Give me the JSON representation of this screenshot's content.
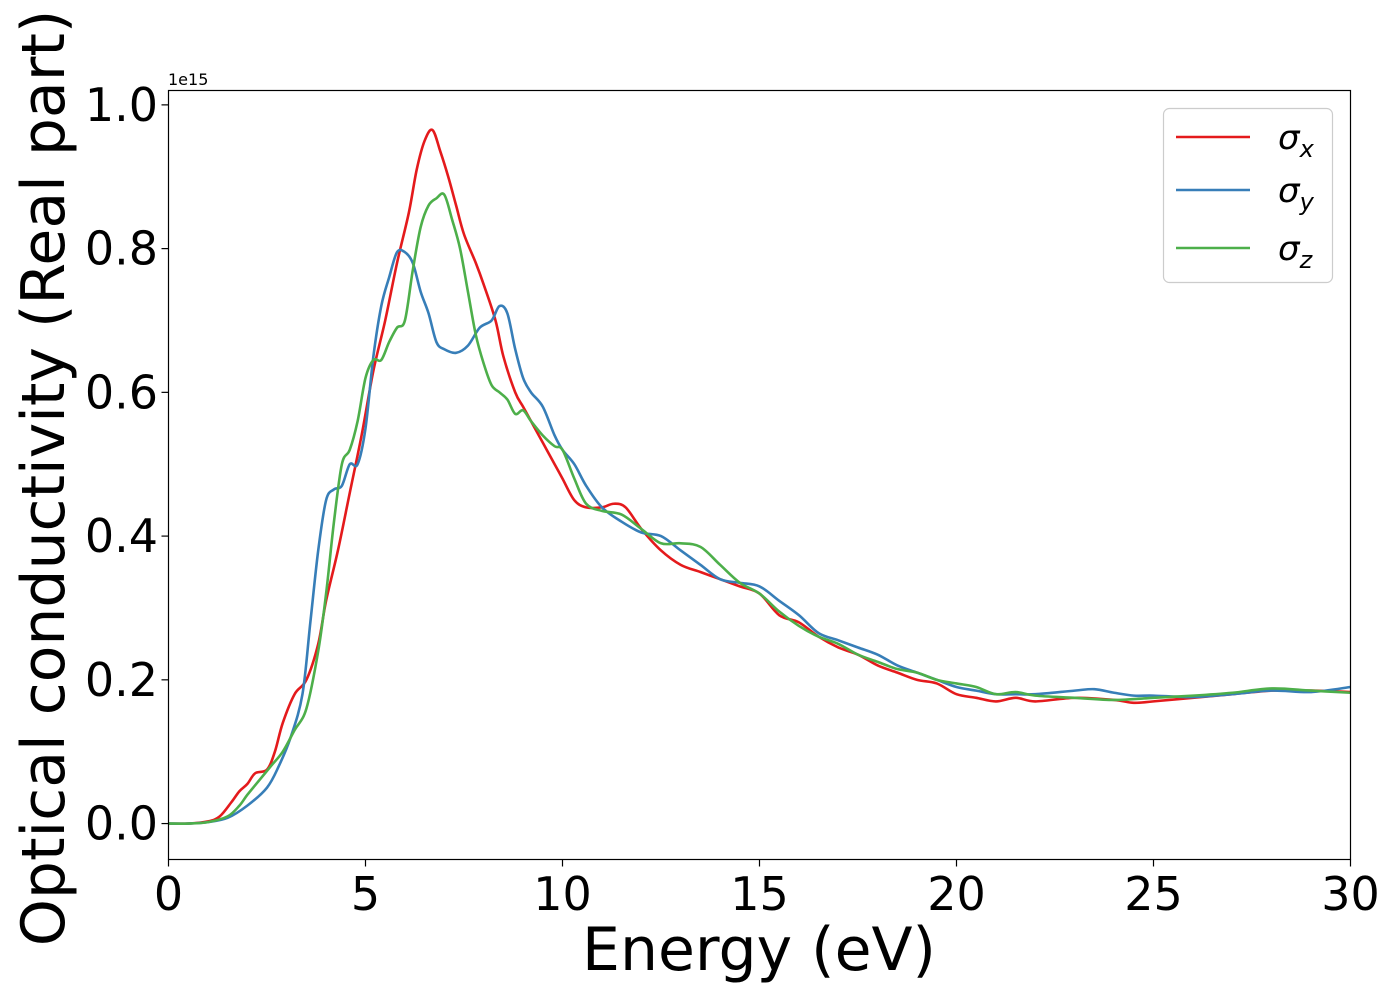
{
  "chart_data": {
    "type": "line",
    "title": "",
    "xlabel": "Energy (eV)",
    "ylabel": "Optical conductivity (Real part)",
    "y_offset_label": "1e15",
    "xlim": [
      0,
      30
    ],
    "ylim": [
      -0.05,
      1.02
    ],
    "grid": false,
    "legend_position": "top-right",
    "x_ticks": [
      0,
      5,
      10,
      15,
      20,
      25,
      30
    ],
    "x_tick_labels": [
      "0",
      "5",
      "10",
      "15",
      "20",
      "25",
      "30"
    ],
    "y_ticks": [
      0.0,
      0.2,
      0.4,
      0.6,
      0.8,
      1.0
    ],
    "y_tick_labels": [
      "0.0",
      "0.2",
      "0.4",
      "0.6",
      "0.8",
      "1.0"
    ],
    "series": [
      {
        "name": "σx",
        "symbol": "σ",
        "subscript": "x",
        "color": "#e41a1c",
        "points": [
          [
            0,
            0
          ],
          [
            0.5,
            0
          ],
          [
            1,
            0.003
          ],
          [
            1.3,
            0.01
          ],
          [
            1.6,
            0.03
          ],
          [
            1.8,
            0.045
          ],
          [
            2,
            0.055
          ],
          [
            2.2,
            0.07
          ],
          [
            2.5,
            0.075
          ],
          [
            2.7,
            0.1
          ],
          [
            2.9,
            0.14
          ],
          [
            3.2,
            0.18
          ],
          [
            3.5,
            0.2
          ],
          [
            3.8,
            0.25
          ],
          [
            4,
            0.31
          ],
          [
            4.3,
            0.38
          ],
          [
            4.6,
            0.46
          ],
          [
            4.9,
            0.54
          ],
          [
            5.2,
            0.63
          ],
          [
            5.5,
            0.7
          ],
          [
            5.8,
            0.78
          ],
          [
            6.1,
            0.85
          ],
          [
            6.3,
            0.91
          ],
          [
            6.5,
            0.95
          ],
          [
            6.7,
            0.965
          ],
          [
            6.9,
            0.935
          ],
          [
            7.1,
            0.9
          ],
          [
            7.3,
            0.86
          ],
          [
            7.5,
            0.82
          ],
          [
            7.8,
            0.78
          ],
          [
            8,
            0.75
          ],
          [
            8.3,
            0.7
          ],
          [
            8.5,
            0.65
          ],
          [
            8.8,
            0.6
          ],
          [
            9,
            0.58
          ],
          [
            9.2,
            0.56
          ],
          [
            9.5,
            0.53
          ],
          [
            9.8,
            0.5
          ],
          [
            10,
            0.48
          ],
          [
            10.3,
            0.45
          ],
          [
            10.6,
            0.44
          ],
          [
            11,
            0.44
          ],
          [
            11.3,
            0.445
          ],
          [
            11.6,
            0.44
          ],
          [
            12,
            0.41
          ],
          [
            12.5,
            0.38
          ],
          [
            13,
            0.36
          ],
          [
            13.5,
            0.35
          ],
          [
            14,
            0.34
          ],
          [
            14.5,
            0.33
          ],
          [
            15,
            0.32
          ],
          [
            15.5,
            0.29
          ],
          [
            16,
            0.28
          ],
          [
            16.5,
            0.26
          ],
          [
            17,
            0.245
          ],
          [
            17.5,
            0.235
          ],
          [
            18,
            0.22
          ],
          [
            18.5,
            0.21
          ],
          [
            19,
            0.2
          ],
          [
            19.5,
            0.195
          ],
          [
            20,
            0.18
          ],
          [
            20.5,
            0.175
          ],
          [
            21,
            0.17
          ],
          [
            21.5,
            0.175
          ],
          [
            22,
            0.17
          ],
          [
            23,
            0.175
          ],
          [
            24,
            0.172
          ],
          [
            24.5,
            0.168
          ],
          [
            25,
            0.17
          ],
          [
            26,
            0.175
          ],
          [
            27,
            0.18
          ],
          [
            28,
            0.185
          ],
          [
            29,
            0.185
          ],
          [
            30,
            0.183
          ]
        ]
      },
      {
        "name": "σy",
        "symbol": "σ",
        "subscript": "y",
        "color": "#377eb8",
        "points": [
          [
            0,
            0
          ],
          [
            0.5,
            0
          ],
          [
            1,
            0.002
          ],
          [
            1.5,
            0.008
          ],
          [
            2,
            0.025
          ],
          [
            2.5,
            0.05
          ],
          [
            2.8,
            0.08
          ],
          [
            3.1,
            0.12
          ],
          [
            3.4,
            0.18
          ],
          [
            3.6,
            0.28
          ],
          [
            3.8,
            0.38
          ],
          [
            4,
            0.45
          ],
          [
            4.2,
            0.465
          ],
          [
            4.4,
            0.47
          ],
          [
            4.6,
            0.5
          ],
          [
            4.8,
            0.5
          ],
          [
            5,
            0.55
          ],
          [
            5.2,
            0.65
          ],
          [
            5.4,
            0.72
          ],
          [
            5.6,
            0.76
          ],
          [
            5.8,
            0.795
          ],
          [
            6,
            0.795
          ],
          [
            6.2,
            0.78
          ],
          [
            6.4,
            0.74
          ],
          [
            6.6,
            0.71
          ],
          [
            6.8,
            0.67
          ],
          [
            7,
            0.66
          ],
          [
            7.3,
            0.655
          ],
          [
            7.6,
            0.665
          ],
          [
            7.9,
            0.69
          ],
          [
            8.2,
            0.7
          ],
          [
            8.4,
            0.72
          ],
          [
            8.6,
            0.71
          ],
          [
            8.8,
            0.66
          ],
          [
            9,
            0.62
          ],
          [
            9.2,
            0.6
          ],
          [
            9.5,
            0.58
          ],
          [
            9.8,
            0.54
          ],
          [
            10,
            0.52
          ],
          [
            10.3,
            0.5
          ],
          [
            10.6,
            0.47
          ],
          [
            11,
            0.44
          ],
          [
            11.5,
            0.42
          ],
          [
            12,
            0.405
          ],
          [
            12.5,
            0.4
          ],
          [
            13,
            0.38
          ],
          [
            13.5,
            0.36
          ],
          [
            14,
            0.34
          ],
          [
            14.5,
            0.335
          ],
          [
            15,
            0.33
          ],
          [
            15.5,
            0.31
          ],
          [
            16,
            0.29
          ],
          [
            16.5,
            0.265
          ],
          [
            17,
            0.255
          ],
          [
            17.5,
            0.245
          ],
          [
            18,
            0.235
          ],
          [
            18.5,
            0.22
          ],
          [
            19,
            0.21
          ],
          [
            19.5,
            0.2
          ],
          [
            20,
            0.19
          ],
          [
            20.5,
            0.185
          ],
          [
            21,
            0.18
          ],
          [
            21.5,
            0.18
          ],
          [
            22,
            0.18
          ],
          [
            23,
            0.185
          ],
          [
            23.5,
            0.187
          ],
          [
            24,
            0.182
          ],
          [
            24.5,
            0.178
          ],
          [
            25,
            0.178
          ],
          [
            26,
            0.176
          ],
          [
            27,
            0.18
          ],
          [
            28,
            0.185
          ],
          [
            29,
            0.183
          ],
          [
            30,
            0.19
          ]
        ]
      },
      {
        "name": "σz",
        "symbol": "σ",
        "subscript": "z",
        "color": "#4daf4a",
        "points": [
          [
            0,
            0
          ],
          [
            0.5,
            0
          ],
          [
            1,
            0.002
          ],
          [
            1.5,
            0.01
          ],
          [
            1.8,
            0.025
          ],
          [
            2,
            0.04
          ],
          [
            2.3,
            0.06
          ],
          [
            2.6,
            0.08
          ],
          [
            2.9,
            0.1
          ],
          [
            3.2,
            0.13
          ],
          [
            3.5,
            0.16
          ],
          [
            3.8,
            0.24
          ],
          [
            4,
            0.32
          ],
          [
            4.2,
            0.42
          ],
          [
            4.4,
            0.5
          ],
          [
            4.6,
            0.52
          ],
          [
            4.8,
            0.56
          ],
          [
            5,
            0.62
          ],
          [
            5.2,
            0.645
          ],
          [
            5.4,
            0.645
          ],
          [
            5.6,
            0.67
          ],
          [
            5.8,
            0.69
          ],
          [
            6,
            0.7
          ],
          [
            6.2,
            0.77
          ],
          [
            6.4,
            0.83
          ],
          [
            6.6,
            0.86
          ],
          [
            6.8,
            0.87
          ],
          [
            7,
            0.875
          ],
          [
            7.2,
            0.84
          ],
          [
            7.4,
            0.8
          ],
          [
            7.6,
            0.74
          ],
          [
            7.8,
            0.68
          ],
          [
            8,
            0.64
          ],
          [
            8.2,
            0.61
          ],
          [
            8.4,
            0.6
          ],
          [
            8.6,
            0.59
          ],
          [
            8.8,
            0.57
          ],
          [
            9,
            0.575
          ],
          [
            9.2,
            0.56
          ],
          [
            9.5,
            0.54
          ],
          [
            9.8,
            0.525
          ],
          [
            10,
            0.52
          ],
          [
            10.3,
            0.48
          ],
          [
            10.6,
            0.445
          ],
          [
            11,
            0.435
          ],
          [
            11.5,
            0.43
          ],
          [
            12,
            0.41
          ],
          [
            12.5,
            0.39
          ],
          [
            13,
            0.39
          ],
          [
            13.5,
            0.385
          ],
          [
            14,
            0.36
          ],
          [
            14.5,
            0.335
          ],
          [
            15,
            0.32
          ],
          [
            15.5,
            0.295
          ],
          [
            16,
            0.275
          ],
          [
            16.5,
            0.26
          ],
          [
            17,
            0.25
          ],
          [
            17.5,
            0.235
          ],
          [
            18,
            0.225
          ],
          [
            18.5,
            0.215
          ],
          [
            19,
            0.21
          ],
          [
            19.5,
            0.2
          ],
          [
            20,
            0.195
          ],
          [
            20.5,
            0.19
          ],
          [
            21,
            0.18
          ],
          [
            21.5,
            0.183
          ],
          [
            22,
            0.178
          ],
          [
            23,
            0.175
          ],
          [
            24,
            0.172
          ],
          [
            25,
            0.175
          ],
          [
            26,
            0.178
          ],
          [
            27,
            0.182
          ],
          [
            28,
            0.188
          ],
          [
            29,
            0.185
          ],
          [
            30,
            0.182
          ]
        ]
      }
    ]
  }
}
